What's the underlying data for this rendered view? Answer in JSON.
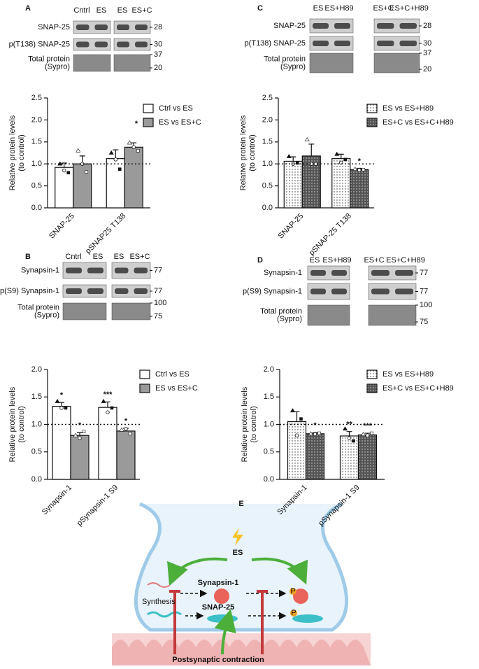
{
  "chart_data": [
    {
      "type": "bar",
      "ylabel": [
        "Relative protein levels",
        "(to control)"
      ],
      "categories": [
        "SNAP-25",
        "pSNAP25 T138"
      ],
      "ylim": [
        0,
        2.5
      ],
      "yticks": [
        {
          "value": 0,
          "label": "0.0"
        },
        0.5,
        {
          "value": 1,
          "label": "1.0"
        },
        1.5,
        {
          "value": 2,
          "label": "2.0"
        },
        2.5
      ],
      "reference_line": 1,
      "series": [
        {
          "name": "Ctrl vs ES",
          "color": "#ffffff",
          "values": [
            0.92,
            1.12
          ],
          "errors": [
            0.1,
            0.2
          ],
          "points": [
            [
              1.0,
              0.85,
              0.8
            ],
            [
              1.25,
              1.1,
              0.88
            ]
          ],
          "annotations": [
            null,
            null
          ]
        },
        {
          "name": "ES vs ES+C",
          "color": "#9a9a9a",
          "legend_mark": "*",
          "values": [
            1.0,
            1.38
          ],
          "errors": [
            0.18,
            0.1
          ],
          "points": [
            [
              1.3,
              1.0,
              0.82
            ],
            [
              1.48,
              1.38,
              1.3
            ]
          ],
          "annotations": [
            null,
            null
          ]
        }
      ]
    },
    {
      "type": "bar",
      "ylabel": [
        "Relative protein levels",
        "(to control)"
      ],
      "categories": [
        "Synapsin-1",
        "pSynapsin-1 S9"
      ],
      "ylim": [
        0,
        2
      ],
      "yticks": [
        {
          "value": 0,
          "label": "0.0"
        },
        0.5,
        {
          "value": 1,
          "label": "1.0"
        },
        1.5,
        {
          "value": 2,
          "label": "2.0"
        }
      ],
      "reference_line": 1,
      "series": [
        {
          "name": "Ctrl vs ES",
          "color": "#ffffff",
          "values": [
            1.33,
            1.31
          ],
          "errors": [
            0.07,
            0.1
          ],
          "points": [
            [
              1.42,
              1.3,
              1.3
            ],
            [
              1.42,
              1.22,
              1.3
            ]
          ],
          "annotations": [
            "*",
            "***"
          ]
        },
        {
          "name": "ES vs ES+C",
          "color": "#9a9a9a",
          "values": [
            0.8,
            0.88
          ],
          "errors": [
            0.05,
            0.05
          ],
          "points": [
            [
              0.8,
              0.75,
              0.87
            ],
            [
              0.9,
              0.92,
              0.83
            ]
          ],
          "annotations": [
            "*",
            "*"
          ]
        }
      ]
    },
    {
      "type": "bar",
      "ylabel": [
        "Relative protein levels",
        "(to control)"
      ],
      "categories": [
        "SNAP-25",
        "pSNAP-25 T138"
      ],
      "ylim": [
        0,
        2.5
      ],
      "yticks": [
        {
          "value": 0,
          "label": "0.0"
        },
        0.5,
        {
          "value": 1,
          "label": "1.0"
        },
        1.5,
        {
          "value": 2,
          "label": "2.0"
        },
        2.5
      ],
      "reference_line": 1,
      "series": [
        {
          "name": "ES vs ES+H89",
          "color": "#ffffff",
          "pattern": "dots",
          "values": [
            1.06,
            1.12
          ],
          "errors": [
            0.1,
            0.1
          ],
          "points": [
            [
              1.17,
              1.0,
              1.02
            ],
            [
              1.22,
              1.03,
              1.1
            ]
          ],
          "annotations": [
            null,
            null
          ]
        },
        {
          "name": "ES+C vs ES+C+H89",
          "color": "#555555",
          "pattern": "dots",
          "values": [
            1.18,
            0.87
          ],
          "errors": [
            0.27,
            0.03
          ],
          "points": [
            [
              1.55,
              1.0,
              1.0
            ],
            [
              0.88,
              0.86,
              0.87
            ]
          ],
          "annotations": [
            null,
            "*"
          ]
        }
      ]
    },
    {
      "type": "bar",
      "ylabel": [
        "Relative protein levels",
        "(to control)"
      ],
      "categories": [
        "Synapsin-1",
        "pSynapsin-1 S9"
      ],
      "ylim": [
        0,
        2
      ],
      "yticks": [
        {
          "value": 0,
          "label": "0.0"
        },
        0.5,
        {
          "value": 1,
          "label": "1.0"
        },
        1.5,
        {
          "value": 2,
          "label": "2.0"
        }
      ],
      "reference_line": 1,
      "series": [
        {
          "name": "ES vs ES+H89",
          "color": "#ffffff",
          "pattern": "dots",
          "values": [
            1.05,
            0.79
          ],
          "errors": [
            0.18,
            0.08
          ],
          "points": [
            [
              1.25,
              0.8,
              1.1
            ],
            [
              0.92,
              0.75,
              0.7
            ]
          ],
          "annotations": [
            null,
            "**"
          ]
        },
        {
          "name": "ES+C vs ES+C+H89",
          "color": "#555555",
          "pattern": "dots",
          "values": [
            0.83,
            0.81
          ],
          "errors": [
            0.02,
            0.03
          ],
          "points": [
            [
              0.83,
              0.82,
              0.84
            ],
            [
              0.82,
              0.8,
              0.84
            ]
          ],
          "annotations": [
            "*",
            "***"
          ]
        }
      ]
    }
  ],
  "blots": [
    {
      "panel": "A",
      "lanes": [
        "Cntrl",
        "ES",
        "ES",
        "ES+C"
      ],
      "rows": [
        {
          "label": [
            "SNAP-25"
          ],
          "markers": [
            28
          ]
        },
        {
          "label": [
            "p(T138) SNAP-25"
          ],
          "markers": [
            30
          ]
        },
        {
          "label": [
            "Total protein",
            "(Sypro)"
          ],
          "markers": [
            37,
            20
          ]
        }
      ]
    },
    {
      "panel": "B",
      "lanes": [
        "Cntrl",
        "ES",
        "ES",
        "ES+C"
      ],
      "rows": [
        {
          "label": [
            "Synapsin-1"
          ],
          "markers": [
            77
          ]
        },
        {
          "label": [
            "p(S9) Synapsin-1"
          ],
          "markers": [
            77
          ]
        },
        {
          "label": [
            "Total protein",
            "(Sypro)"
          ],
          "markers": [
            100,
            75
          ]
        }
      ]
    },
    {
      "panel": "C",
      "lanes": [
        "ES",
        "ES+H89",
        "ES+C",
        "ES+C+H89"
      ],
      "rows": [
        {
          "label": [
            "SNAP-25"
          ],
          "markers": [
            28
          ]
        },
        {
          "label": [
            "p(T138) SNAP-25"
          ],
          "markers": [
            30
          ]
        },
        {
          "label": [
            "Total protein",
            "(Sypro)"
          ],
          "markers": [
            37,
            20
          ]
        }
      ]
    },
    {
      "panel": "D",
      "lanes": [
        "ES",
        "ES+H89",
        "ES+C",
        "ES+C+H89"
      ],
      "rows": [
        {
          "label": [
            "Synapsin-1"
          ],
          "markers": [
            77
          ]
        },
        {
          "label": [
            "p(S9) Synapsin-1"
          ],
          "markers": [
            77
          ]
        },
        {
          "label": [
            "Total protein",
            "(Sypro)"
          ],
          "markers": [
            100,
            75
          ]
        }
      ]
    }
  ],
  "diagram": {
    "panel": "E",
    "stimulus": "ES",
    "proteins": [
      "Synapsin-1",
      "SNAP-25"
    ],
    "process": "Synthesis",
    "phospho": [
      "P",
      "P"
    ],
    "source": "Postsynaptic contraction"
  }
}
